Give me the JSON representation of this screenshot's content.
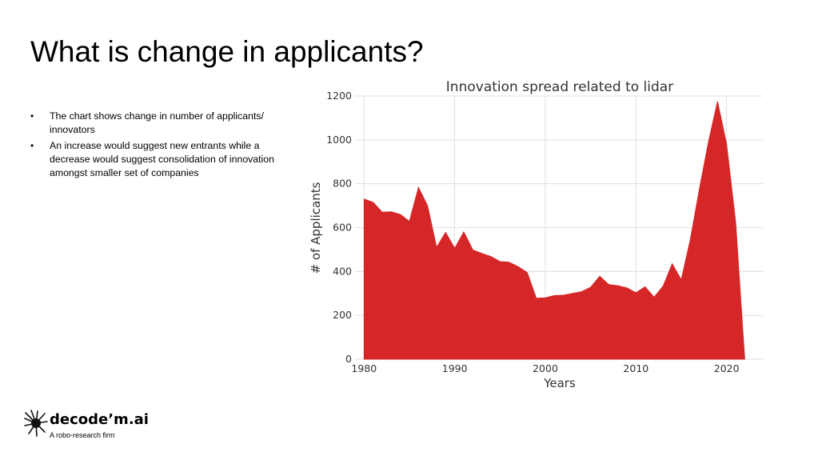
{
  "slide": {
    "title": "What is change in applicants?",
    "bullets": [
      "The chart shows change in number of applicants/ innovators",
      "An increase would suggest new entrants while a decrease would suggest consolidation of innovation amongst smaller set of companies"
    ],
    "bullet_glyph": "•"
  },
  "logo": {
    "name": "decode’m.ai",
    "tagline": "A robo-research firm",
    "icon": "splatter-icon"
  },
  "chart_data": {
    "type": "area",
    "title": "Innovation spread related to lidar",
    "xlabel": "Years",
    "ylabel": "# of Applicants",
    "xlim": [
      1979,
      2024
    ],
    "ylim": [
      0,
      1200
    ],
    "xticks": [
      1980,
      1990,
      2000,
      2010,
      2020
    ],
    "yticks": [
      0,
      200,
      400,
      600,
      800,
      1000,
      1200
    ],
    "grid": true,
    "color": "#d62728",
    "x": [
      1980,
      1981,
      1982,
      1983,
      1984,
      1985,
      1986,
      1987,
      1988,
      1989,
      1990,
      1991,
      1992,
      1993,
      1994,
      1995,
      1996,
      1997,
      1998,
      1999,
      2000,
      2001,
      2002,
      2003,
      2004,
      2005,
      2006,
      2007,
      2008,
      2009,
      2010,
      2011,
      2012,
      2013,
      2014,
      2015,
      2016,
      2017,
      2018,
      2019,
      2020,
      2021,
      2022
    ],
    "y": [
      730,
      715,
      670,
      672,
      660,
      628,
      783,
      700,
      510,
      578,
      505,
      580,
      498,
      482,
      468,
      445,
      442,
      422,
      395,
      278,
      280,
      290,
      292,
      300,
      308,
      328,
      378,
      340,
      335,
      325,
      303,
      330,
      283,
      333,
      435,
      362,
      545,
      775,
      990,
      1175,
      980,
      625,
      0
    ]
  }
}
